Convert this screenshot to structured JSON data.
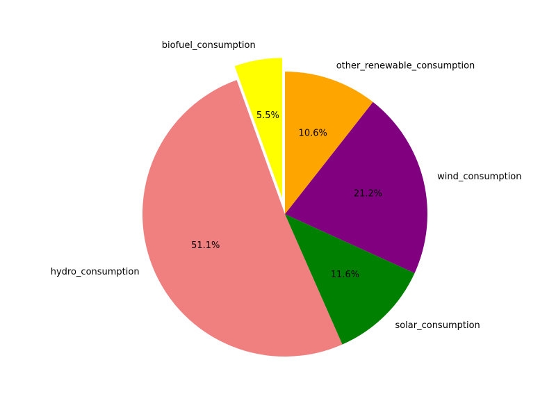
{
  "chart_data": {
    "type": "pie",
    "title": "",
    "start_angle_deg": 90,
    "direction": "counterclockwise",
    "slices": [
      {
        "label": "biofuel_consumption",
        "value": 5.5,
        "pct_label": "5.5%",
        "color": "#ffff00",
        "explode": true
      },
      {
        "label": "hydro_consumption",
        "value": 51.1,
        "pct_label": "51.1%",
        "color": "#f08080",
        "explode": false
      },
      {
        "label": "solar_consumption",
        "value": 11.6,
        "pct_label": "11.6%",
        "color": "#008000",
        "explode": false
      },
      {
        "label": "wind_consumption",
        "value": 21.2,
        "pct_label": "21.2%",
        "color": "#800080",
        "explode": false
      },
      {
        "label": "other_renewable_consumption",
        "value": 10.6,
        "pct_label": "10.6%",
        "color": "#ffa500",
        "explode": false
      }
    ]
  }
}
